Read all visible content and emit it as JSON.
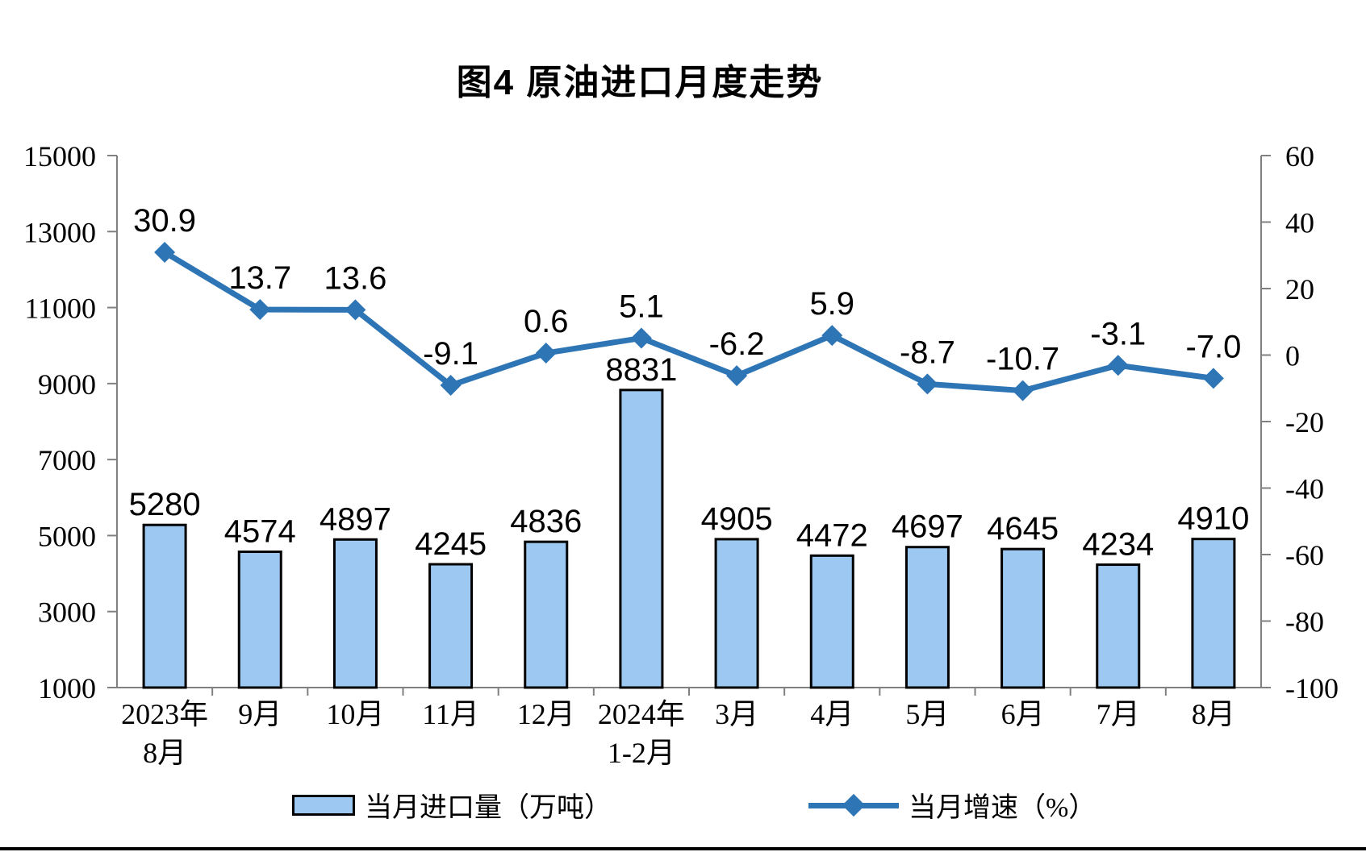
{
  "title": "图4 原油进口月度走势",
  "colors": {
    "bar_fill": "#9CC8F2",
    "bar_border": "#000000",
    "line": "#2E75B6",
    "axis": "#808080",
    "text": "#000000"
  },
  "legend": {
    "bars_label": "当月进口量（万吨）",
    "line_label": "当月增速（%）"
  },
  "chart_data": {
    "type": "combo-bar-line",
    "title": "图4 原油进口月度走势",
    "categories": [
      "2023年\n8月",
      "9月",
      "10月",
      "11月",
      "12月",
      "2024年\n1-2月",
      "3月",
      "4月",
      "5月",
      "6月",
      "7月",
      "8月"
    ],
    "series": [
      {
        "name": "当月进口量（万吨）",
        "type": "bar",
        "axis": "left",
        "values": [
          5280,
          4574,
          4897,
          4245,
          4836,
          8831,
          4905,
          4472,
          4697,
          4645,
          4234,
          4910
        ]
      },
      {
        "name": "当月增速（%）",
        "type": "line",
        "axis": "right",
        "values": [
          30.9,
          13.7,
          13.6,
          -9.1,
          0.6,
          5.1,
          -6.2,
          5.9,
          -8.7,
          -10.7,
          -3.1,
          -7.0
        ]
      }
    ],
    "left_axis": {
      "min": 1000,
      "max": 15000,
      "step": 2000,
      "ticks": [
        1000,
        3000,
        5000,
        7000,
        9000,
        11000,
        13000,
        15000
      ]
    },
    "right_axis": {
      "min": -100,
      "max": 60,
      "step": 20,
      "ticks": [
        -100,
        -80,
        -60,
        -40,
        -20,
        0,
        20,
        40,
        60
      ]
    },
    "grid": false,
    "legend_position": "bottom"
  }
}
